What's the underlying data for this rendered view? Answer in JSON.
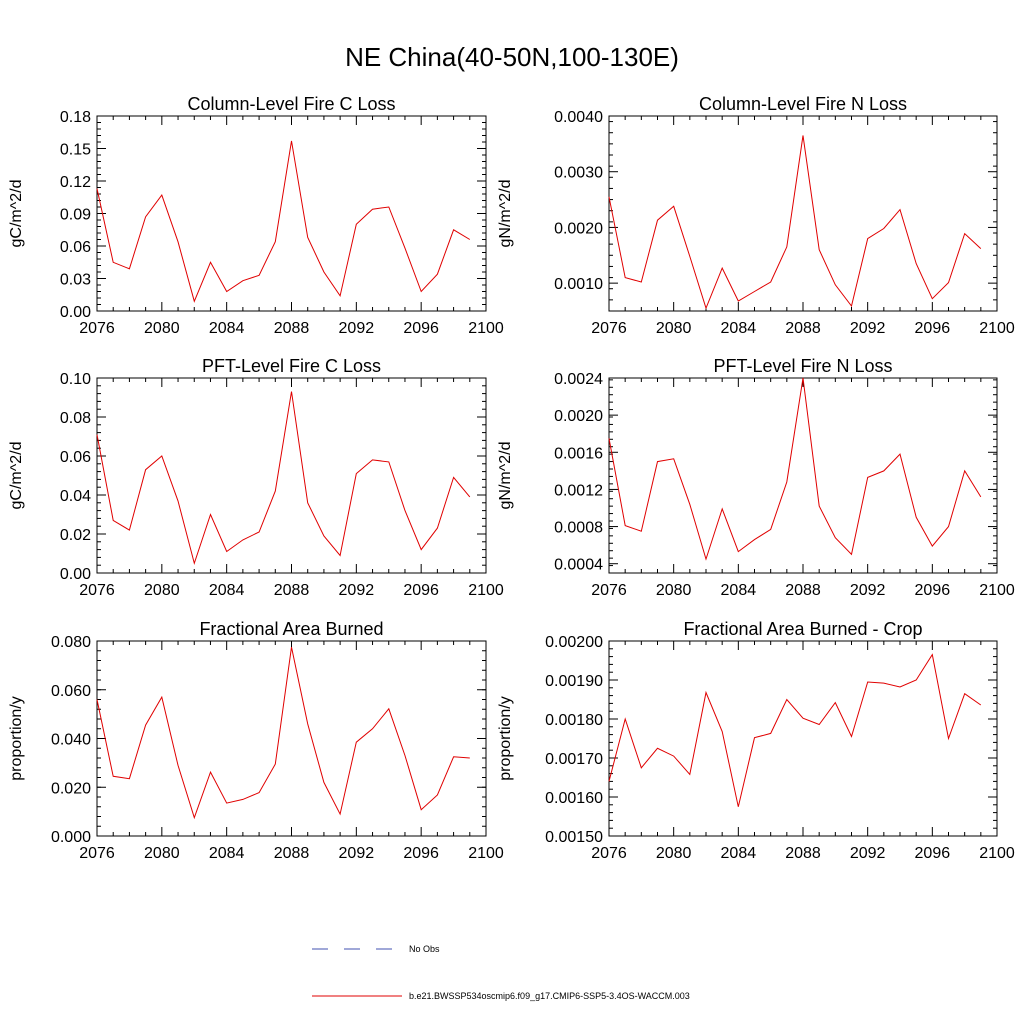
{
  "figure": {
    "title": "NE China(40-50N,100-130E)"
  },
  "legend": {
    "entries": [
      {
        "label": "No Obs",
        "color": "#4050b0",
        "style": "dashed"
      },
      {
        "label": "b.e21.BWSSP534oscmip6.f09_g17.CMIP6-SSP5-3.4OS-WACCM.003",
        "color": "#e00000",
        "style": "solid"
      }
    ]
  },
  "chart_data": [
    {
      "type": "line",
      "title": "Column-Level Fire C Loss",
      "ylabel": "gC/m^2/d",
      "xlim": [
        2076,
        2100
      ],
      "ylim": [
        0,
        0.18
      ],
      "xticks": [
        2076,
        2080,
        2084,
        2088,
        2092,
        2096,
        2100
      ],
      "yticks": [
        0.0,
        0.03,
        0.06,
        0.09,
        0.12,
        0.15,
        0.18
      ],
      "ytick_labels": [
        "0.00",
        "0.03",
        "0.06",
        "0.09",
        "0.12",
        "0.15",
        "0.18"
      ],
      "x": [
        2076,
        2077,
        2078,
        2079,
        2080,
        2081,
        2082,
        2083,
        2084,
        2085,
        2086,
        2087,
        2088,
        2089,
        2090,
        2091,
        2092,
        2093,
        2094,
        2095,
        2096,
        2097,
        2098,
        2099
      ],
      "series": [
        {
          "color": "#e00000",
          "values": [
            0.113,
            0.045,
            0.039,
            0.087,
            0.107,
            0.064,
            0.009,
            0.045,
            0.018,
            0.028,
            0.033,
            0.064,
            0.157,
            0.068,
            0.036,
            0.014,
            0.08,
            0.094,
            0.096,
            0.058,
            0.018,
            0.034,
            0.075,
            0.066
          ]
        }
      ]
    },
    {
      "type": "line",
      "title": "Column-Level Fire N Loss",
      "ylabel": "gN/m^2/d",
      "xlim": [
        2076,
        2100
      ],
      "ylim": [
        0.0005,
        0.004
      ],
      "xticks": [
        2076,
        2080,
        2084,
        2088,
        2092,
        2096,
        2100
      ],
      "yticks": [
        0.001,
        0.002,
        0.003,
        0.004
      ],
      "ytick_labels": [
        "0.0010",
        "0.0020",
        "0.0030",
        "0.0040"
      ],
      "x": [
        2076,
        2077,
        2078,
        2079,
        2080,
        2081,
        2082,
        2083,
        2084,
        2085,
        2086,
        2087,
        2088,
        2089,
        2090,
        2091,
        2092,
        2093,
        2094,
        2095,
        2096,
        2097,
        2098,
        2099
      ],
      "series": [
        {
          "color": "#e00000",
          "values": [
            0.00255,
            0.0011,
            0.00102,
            0.00213,
            0.00238,
            0.00148,
            0.00055,
            0.00127,
            0.00068,
            0.00085,
            0.00102,
            0.00165,
            0.00365,
            0.0016,
            0.00097,
            0.00059,
            0.0018,
            0.00198,
            0.00232,
            0.00135,
            0.00072,
            0.00101,
            0.00189,
            0.00162
          ]
        }
      ]
    },
    {
      "type": "line",
      "title": "PFT-Level Fire C Loss",
      "ylabel": "gC/m^2/d",
      "xlim": [
        2076,
        2100
      ],
      "ylim": [
        0,
        0.1
      ],
      "xticks": [
        2076,
        2080,
        2084,
        2088,
        2092,
        2096,
        2100
      ],
      "yticks": [
        0.0,
        0.02,
        0.04,
        0.06,
        0.08,
        0.1
      ],
      "ytick_labels": [
        "0.00",
        "0.02",
        "0.04",
        "0.06",
        "0.08",
        "0.10"
      ],
      "x": [
        2076,
        2077,
        2078,
        2079,
        2080,
        2081,
        2082,
        2083,
        2084,
        2085,
        2086,
        2087,
        2088,
        2089,
        2090,
        2091,
        2092,
        2093,
        2094,
        2095,
        2096,
        2097,
        2098,
        2099
      ],
      "series": [
        {
          "color": "#e00000",
          "values": [
            0.071,
            0.027,
            0.022,
            0.053,
            0.06,
            0.037,
            0.005,
            0.03,
            0.011,
            0.017,
            0.021,
            0.042,
            0.093,
            0.036,
            0.019,
            0.009,
            0.051,
            0.058,
            0.057,
            0.032,
            0.012,
            0.023,
            0.049,
            0.039
          ]
        }
      ]
    },
    {
      "type": "line",
      "title": "PFT-Level Fire N Loss",
      "ylabel": "gN/m^2/d",
      "xlim": [
        2076,
        2100
      ],
      "ylim": [
        0.0003,
        0.0024
      ],
      "xticks": [
        2076,
        2080,
        2084,
        2088,
        2092,
        2096,
        2100
      ],
      "yticks": [
        0.0004,
        0.0008,
        0.0012,
        0.0016,
        0.002,
        0.0024
      ],
      "ytick_labels": [
        "0.0004",
        "0.0008",
        "0.0012",
        "0.0016",
        "0.0020",
        "0.0024"
      ],
      "x": [
        2076,
        2077,
        2078,
        2079,
        2080,
        2081,
        2082,
        2083,
        2084,
        2085,
        2086,
        2087,
        2088,
        2089,
        2090,
        2091,
        2092,
        2093,
        2094,
        2095,
        2096,
        2097,
        2098,
        2099
      ],
      "series": [
        {
          "color": "#e00000",
          "values": [
            0.00175,
            0.00081,
            0.00075,
            0.0015,
            0.00153,
            0.00104,
            0.00045,
            0.00099,
            0.00053,
            0.00066,
            0.00077,
            0.00128,
            0.0024,
            0.00102,
            0.00068,
            0.0005,
            0.00133,
            0.0014,
            0.00158,
            0.0009,
            0.00059,
            0.0008,
            0.0014,
            0.00112
          ]
        }
      ]
    },
    {
      "type": "line",
      "title": "Fractional Area Burned",
      "ylabel": "proportion/y",
      "xlim": [
        2076,
        2100
      ],
      "ylim": [
        0,
        0.08
      ],
      "xticks": [
        2076,
        2080,
        2084,
        2088,
        2092,
        2096,
        2100
      ],
      "yticks": [
        0.0,
        0.02,
        0.04,
        0.06,
        0.08
      ],
      "ytick_labels": [
        "0.000",
        "0.020",
        "0.040",
        "0.060",
        "0.080"
      ],
      "x": [
        2076,
        2077,
        2078,
        2079,
        2080,
        2081,
        2082,
        2083,
        2084,
        2085,
        2086,
        2087,
        2088,
        2089,
        2090,
        2091,
        2092,
        2093,
        2094,
        2095,
        2096,
        2097,
        2098,
        2099
      ],
      "series": [
        {
          "color": "#e00000",
          "values": [
            0.056,
            0.0245,
            0.0235,
            0.0455,
            0.057,
            0.029,
            0.0075,
            0.0262,
            0.0135,
            0.015,
            0.0178,
            0.0295,
            0.0775,
            0.046,
            0.022,
            0.009,
            0.0385,
            0.044,
            0.0522,
            0.033,
            0.0108,
            0.0168,
            0.0325,
            0.032
          ]
        }
      ]
    },
    {
      "type": "line",
      "title": "Fractional Area Burned - Crop",
      "ylabel": "proportion/y",
      "xlim": [
        2076,
        2100
      ],
      "ylim": [
        0.0015,
        0.002
      ],
      "xticks": [
        2076,
        2080,
        2084,
        2088,
        2092,
        2096,
        2100
      ],
      "yticks": [
        0.0015,
        0.0016,
        0.0017,
        0.0018,
        0.0019,
        0.002
      ],
      "ytick_labels": [
        "0.00150",
        "0.00160",
        "0.00170",
        "0.00180",
        "0.00190",
        "0.00200"
      ],
      "x": [
        2076,
        2077,
        2078,
        2079,
        2080,
        2081,
        2082,
        2083,
        2084,
        2085,
        2086,
        2087,
        2088,
        2089,
        2090,
        2091,
        2092,
        2093,
        2094,
        2095,
        2096,
        2097,
        2098,
        2099
      ],
      "series": [
        {
          "color": "#e00000",
          "values": [
            0.00164,
            0.0018,
            0.001675,
            0.001725,
            0.001705,
            0.001658,
            0.001868,
            0.001768,
            0.001575,
            0.001752,
            0.001763,
            0.00185,
            0.001802,
            0.001786,
            0.001842,
            0.001755,
            0.001895,
            0.001892,
            0.001882,
            0.0019,
            0.001965,
            0.00175,
            0.001865,
            0.001836
          ]
        }
      ]
    }
  ]
}
